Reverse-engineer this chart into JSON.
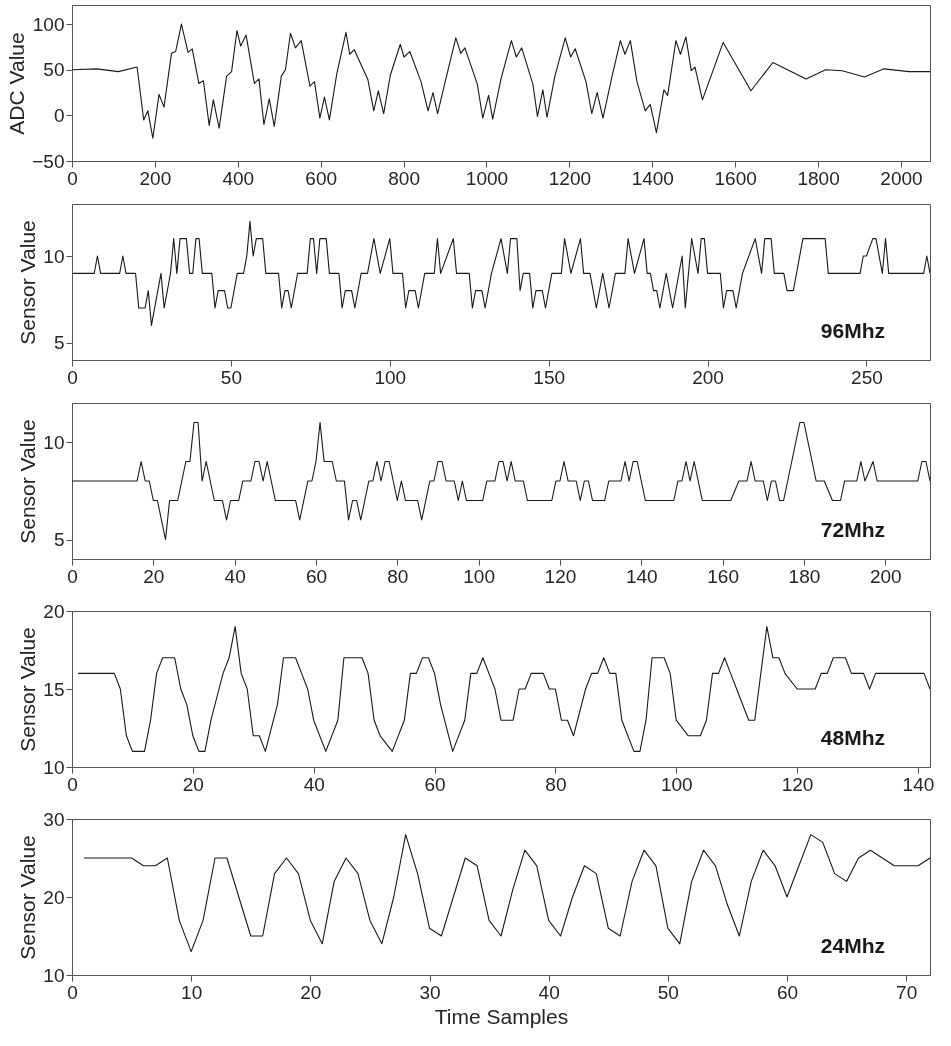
{
  "chart_data": [
    {
      "type": "line",
      "ylabel": "ADC Value",
      "xlim": [
        0,
        2070
      ],
      "xticks": [
        0,
        200,
        400,
        600,
        800,
        1000,
        1200,
        1400,
        1600,
        1800,
        2000
      ],
      "ylim": [
        -50,
        121
      ],
      "yticks": [
        -50,
        0,
        50,
        100
      ],
      "series": [
        {
          "color": "#1a1a1a",
          "x": [
            0,
            60,
            112,
            157,
            173,
            183,
            195,
            210,
            222,
            240,
            250,
            264,
            280,
            290,
            306,
            317,
            331,
            341,
            355,
            373,
            385,
            398,
            407,
            420,
            440,
            451,
            463,
            476,
            488,
            505,
            515,
            527,
            539,
            553,
            574,
            585,
            598,
            609,
            621,
            639,
            661,
            670,
            681,
            714,
            728,
            739,
            752,
            768,
            792,
            801,
            815,
            842,
            859,
            871,
            882,
            902,
            926,
            938,
            948,
            978,
            991,
            1005,
            1015,
            1035,
            1060,
            1072,
            1085,
            1112,
            1123,
            1136,
            1146,
            1165,
            1190,
            1203,
            1214,
            1240,
            1254,
            1267,
            1281,
            1303,
            1323,
            1334,
            1347,
            1363,
            1383,
            1395,
            1410,
            1428,
            1437,
            1457,
            1468,
            1481,
            1494,
            1503,
            1521,
            1571,
            1638,
            1691,
            1771,
            1818,
            1858,
            1912,
            1959,
            2019,
            2070
          ],
          "values": [
            50,
            51,
            48,
            53,
            -5,
            5,
            -25,
            23,
            9,
            68,
            70,
            100,
            69,
            73,
            35,
            38,
            -11,
            17,
            -14,
            43,
            48,
            93,
            76,
            88,
            35,
            40,
            -10,
            18,
            -12,
            43,
            50,
            90,
            74,
            82,
            32,
            37,
            -3,
            20,
            -5,
            46,
            91,
            67,
            72,
            39,
            5,
            27,
            2,
            44,
            78,
            64,
            70,
            37,
            5,
            25,
            2,
            40,
            85,
            68,
            74,
            34,
            -3,
            22,
            -4,
            40,
            82,
            64,
            74,
            34,
            -1,
            28,
            -2,
            43,
            85,
            64,
            73,
            37,
            2,
            25,
            -3,
            43,
            82,
            67,
            82,
            37,
            5,
            12,
            -19,
            28,
            22,
            82,
            67,
            86,
            49,
            53,
            17,
            80,
            27,
            58,
            40,
            50,
            49,
            42,
            51,
            48,
            48
          ]
        }
      ]
    },
    {
      "type": "line",
      "ylabel": "Sensor Value",
      "annotations": [
        "96Mhz"
      ],
      "xlim": [
        0,
        270
      ],
      "xticks": [
        0,
        50,
        100,
        150,
        200,
        250
      ],
      "ylim": [
        4,
        13
      ],
      "yticks": [
        5,
        10
      ],
      "series": [
        {
          "color": "#1a1a1a",
          "x": [
            0,
            7,
            8,
            9,
            15,
            16,
            17,
            20,
            21,
            23,
            24,
            25,
            27,
            28,
            29,
            31,
            32,
            33,
            34,
            36,
            37,
            38,
            39,
            40,
            41,
            44,
            45,
            46,
            48,
            49,
            50,
            52,
            54,
            55,
            56,
            57,
            58,
            60,
            61,
            65,
            66,
            67,
            68,
            69,
            71,
            74,
            75,
            76,
            77,
            78,
            80,
            81,
            84,
            85,
            86,
            88,
            89,
            91,
            93,
            95,
            97,
            100,
            101,
            104,
            105,
            106,
            108,
            109,
            111,
            114,
            115,
            116,
            120,
            121,
            125,
            126,
            127,
            129,
            130,
            132,
            135,
            137,
            138,
            140,
            141,
            142,
            144,
            145,
            146,
            148,
            149,
            151,
            154,
            155,
            157,
            160,
            161,
            163,
            164,
            165,
            167,
            169,
            171,
            174,
            175,
            177,
            180,
            181,
            182,
            183,
            184,
            185,
            187,
            189,
            191,
            192,
            193,
            195,
            197,
            198,
            199,
            200,
            204,
            205,
            206,
            208,
            209,
            211,
            215,
            217,
            218,
            220,
            221,
            224,
            225,
            227,
            228,
            230,
            237,
            238,
            248,
            249,
            250,
            252,
            253,
            255,
            256,
            257,
            268,
            269,
            270
          ],
          "values": [
            9,
            9,
            10,
            9,
            9,
            10,
            9,
            9,
            7,
            7,
            8,
            6,
            8,
            9,
            7,
            9,
            11,
            9,
            11,
            11,
            9,
            9,
            11,
            11,
            9,
            9,
            7,
            8,
            8,
            7,
            7,
            9,
            9,
            10,
            12,
            10,
            11,
            11,
            9,
            9,
            7,
            8,
            8,
            7,
            9,
            9,
            11,
            11,
            9,
            11,
            11,
            9,
            9,
            7,
            8,
            8,
            7,
            9,
            9,
            11,
            9,
            11,
            9,
            9,
            7,
            8,
            8,
            7,
            9,
            9,
            11,
            9,
            11,
            9,
            9,
            7,
            8,
            8,
            7,
            9,
            11,
            9,
            11,
            11,
            8,
            9,
            9,
            7,
            8,
            8,
            7,
            9,
            9,
            11,
            9,
            11,
            9,
            9,
            8,
            7,
            9,
            7,
            9,
            9,
            11,
            9,
            11,
            9,
            9,
            8,
            8,
            7,
            9,
            7,
            9,
            10,
            7,
            11,
            9,
            11,
            11,
            9,
            9,
            7,
            8,
            8,
            7,
            9,
            11,
            9,
            11,
            11,
            9,
            9,
            8,
            8,
            9,
            11,
            11,
            9,
            9,
            10,
            10,
            11,
            11,
            9,
            11,
            9,
            9,
            10,
            9
          ]
        }
      ]
    },
    {
      "type": "line",
      "ylabel": "Sensor Value",
      "annotations": [
        "72Mhz"
      ],
      "xlim": [
        0,
        211
      ],
      "xticks": [
        0,
        20,
        40,
        60,
        80,
        100,
        120,
        140,
        160,
        180,
        200
      ],
      "ylim": [
        4,
        12
      ],
      "yticks": [
        5,
        10
      ],
      "series": [
        {
          "color": "#1a1a1a",
          "x": [
            0,
            16,
            17,
            18,
            19,
            20,
            21,
            23,
            24,
            26,
            28,
            29,
            30,
            31,
            32,
            33,
            35,
            37,
            38,
            39,
            41,
            42,
            44,
            45,
            46,
            47,
            48,
            50,
            55,
            56,
            58,
            59,
            60,
            61,
            62,
            64,
            65,
            67,
            68,
            69,
            70,
            71,
            73,
            74,
            75,
            76,
            77,
            78,
            79,
            80,
            81,
            82,
            85,
            86,
            88,
            89,
            90,
            91,
            92,
            94,
            95,
            96,
            97,
            101,
            102,
            104,
            105,
            106,
            107,
            108,
            109,
            111,
            112,
            118,
            119,
            120,
            121,
            122,
            124,
            125,
            126,
            127,
            128,
            131,
            132,
            135,
            136,
            137,
            138,
            139,
            140,
            141,
            148,
            149,
            150,
            151,
            152,
            153,
            154,
            155,
            162,
            164,
            166,
            167,
            168,
            170,
            171,
            172,
            173,
            174,
            175,
            176,
            177,
            179,
            180,
            182,
            183,
            185,
            187,
            189,
            190,
            193,
            194,
            195,
            197,
            198,
            208,
            209,
            210,
            211
          ],
          "values": [
            8,
            8,
            9,
            8,
            8,
            7,
            7,
            5,
            7,
            7,
            9,
            9,
            11,
            11,
            8,
            9,
            7,
            7,
            6,
            7,
            7,
            8,
            8,
            9,
            9,
            8,
            9,
            7,
            7,
            6,
            8,
            8,
            9,
            11,
            9,
            9,
            8,
            8,
            6,
            7,
            7,
            6,
            8,
            8,
            9,
            8,
            9,
            9,
            8,
            7,
            8,
            7,
            7,
            6,
            8,
            8,
            9,
            9,
            8,
            8,
            7,
            8,
            7,
            7,
            8,
            8,
            9,
            9,
            8,
            9,
            8,
            8,
            7,
            7,
            8,
            8,
            9,
            8,
            8,
            7,
            8,
            8,
            7,
            7,
            8,
            8,
            9,
            8,
            9,
            9,
            8,
            7,
            7,
            8,
            8,
            9,
            8,
            9,
            8,
            7,
            7,
            8,
            8,
            9,
            8,
            8,
            7,
            8,
            8,
            7,
            7,
            8,
            9,
            11,
            11,
            9,
            8,
            8,
            7,
            7,
            8,
            8,
            9,
            8,
            9,
            8,
            8,
            9,
            9,
            8
          ]
        }
      ]
    },
    {
      "type": "line",
      "ylabel": "Sensor Value",
      "annotations": [
        "48Mhz"
      ],
      "xlim": [
        0,
        142
      ],
      "xticks": [
        0,
        20,
        40,
        60,
        80,
        100,
        120,
        140
      ],
      "ylim": [
        10,
        20
      ],
      "yticks": [
        10,
        15,
        20
      ],
      "series": [
        {
          "color": "#1a1a1a",
          "x": [
            1,
            7,
            8,
            9,
            10,
            12,
            13,
            14,
            15,
            17,
            18,
            19,
            20,
            21,
            22,
            23,
            25,
            26,
            27,
            28,
            29,
            30,
            31,
            32,
            34,
            35,
            37,
            38,
            39,
            40,
            42,
            44,
            45,
            48,
            49,
            50,
            51,
            53,
            55,
            56,
            57,
            58,
            59,
            60,
            61,
            63,
            65,
            66,
            67,
            68,
            69,
            70,
            71,
            73,
            74,
            75,
            76,
            78,
            79,
            80,
            81,
            82,
            83,
            85,
            86,
            87,
            88,
            89,
            90,
            91,
            93,
            94,
            95,
            96,
            98,
            99,
            100,
            102,
            104,
            105,
            106,
            107,
            108,
            109,
            110,
            112,
            113,
            114,
            115,
            116,
            117,
            118,
            120,
            123,
            124,
            125,
            126,
            128,
            129,
            131,
            132,
            133,
            141,
            142
          ],
          "values": [
            16,
            16,
            15,
            12,
            11,
            11,
            13,
            16,
            17,
            17,
            15,
            14,
            12,
            11,
            11,
            13,
            16,
            17,
            19,
            16,
            15,
            12,
            12,
            11,
            14,
            17,
            17,
            16,
            15,
            13,
            11,
            13,
            17,
            17,
            16,
            13,
            12,
            11,
            13,
            16,
            16,
            17,
            17,
            16,
            14,
            11,
            13,
            16,
            16,
            17,
            16,
            15,
            13,
            13,
            15,
            15,
            16,
            16,
            15,
            15,
            13,
            13,
            12,
            15,
            16,
            16,
            17,
            16,
            16,
            13,
            11,
            11,
            13,
            17,
            17,
            16,
            13,
            12,
            12,
            13,
            16,
            16,
            17,
            16,
            15,
            13,
            13,
            16,
            19,
            17,
            17,
            16,
            15,
            15,
            16,
            16,
            17,
            17,
            16,
            16,
            15,
            16,
            16,
            15
          ]
        }
      ]
    },
    {
      "type": "line",
      "ylabel": "Sensor Value",
      "xlabel": "Time Samples",
      "annotations": [
        "24Mhz"
      ],
      "xlim": [
        0,
        72
      ],
      "xticks": [
        0,
        10,
        20,
        30,
        40,
        50,
        60,
        70
      ],
      "ylim": [
        10,
        30
      ],
      "yticks": [
        10,
        20,
        30
      ],
      "series": [
        {
          "color": "#1a1a1a",
          "x": [
            1,
            2,
            3,
            4,
            5,
            6,
            7,
            8,
            9,
            10,
            11,
            12,
            13,
            14,
            15,
            16,
            17,
            18,
            19,
            20,
            21,
            22,
            23,
            24,
            25,
            26,
            27,
            28,
            29,
            30,
            31,
            32,
            33,
            34,
            35,
            36,
            37,
            38,
            39,
            40,
            41,
            42,
            43,
            44,
            45,
            46,
            47,
            48,
            49,
            50,
            51,
            52,
            53,
            54,
            55,
            56,
            57,
            58,
            59,
            60,
            61,
            62,
            63,
            64,
            65,
            66,
            67,
            68,
            69,
            70,
            71,
            72
          ],
          "values": [
            25,
            25,
            25,
            25,
            25,
            24,
            24,
            25,
            17,
            13,
            17,
            25,
            25,
            20,
            15,
            15,
            23,
            25,
            23,
            17,
            14,
            22,
            25,
            23,
            17,
            14,
            20,
            28,
            23,
            16,
            15,
            20,
            25,
            24,
            17,
            15,
            21,
            26,
            24,
            17,
            15,
            20,
            24,
            23,
            16,
            15,
            22,
            26,
            24,
            16,
            14,
            22,
            26,
            24,
            19,
            15,
            22,
            26,
            24,
            20,
            24,
            28,
            27,
            23,
            22,
            25,
            26,
            25,
            24,
            24,
            24,
            25
          ]
        }
      ]
    }
  ]
}
